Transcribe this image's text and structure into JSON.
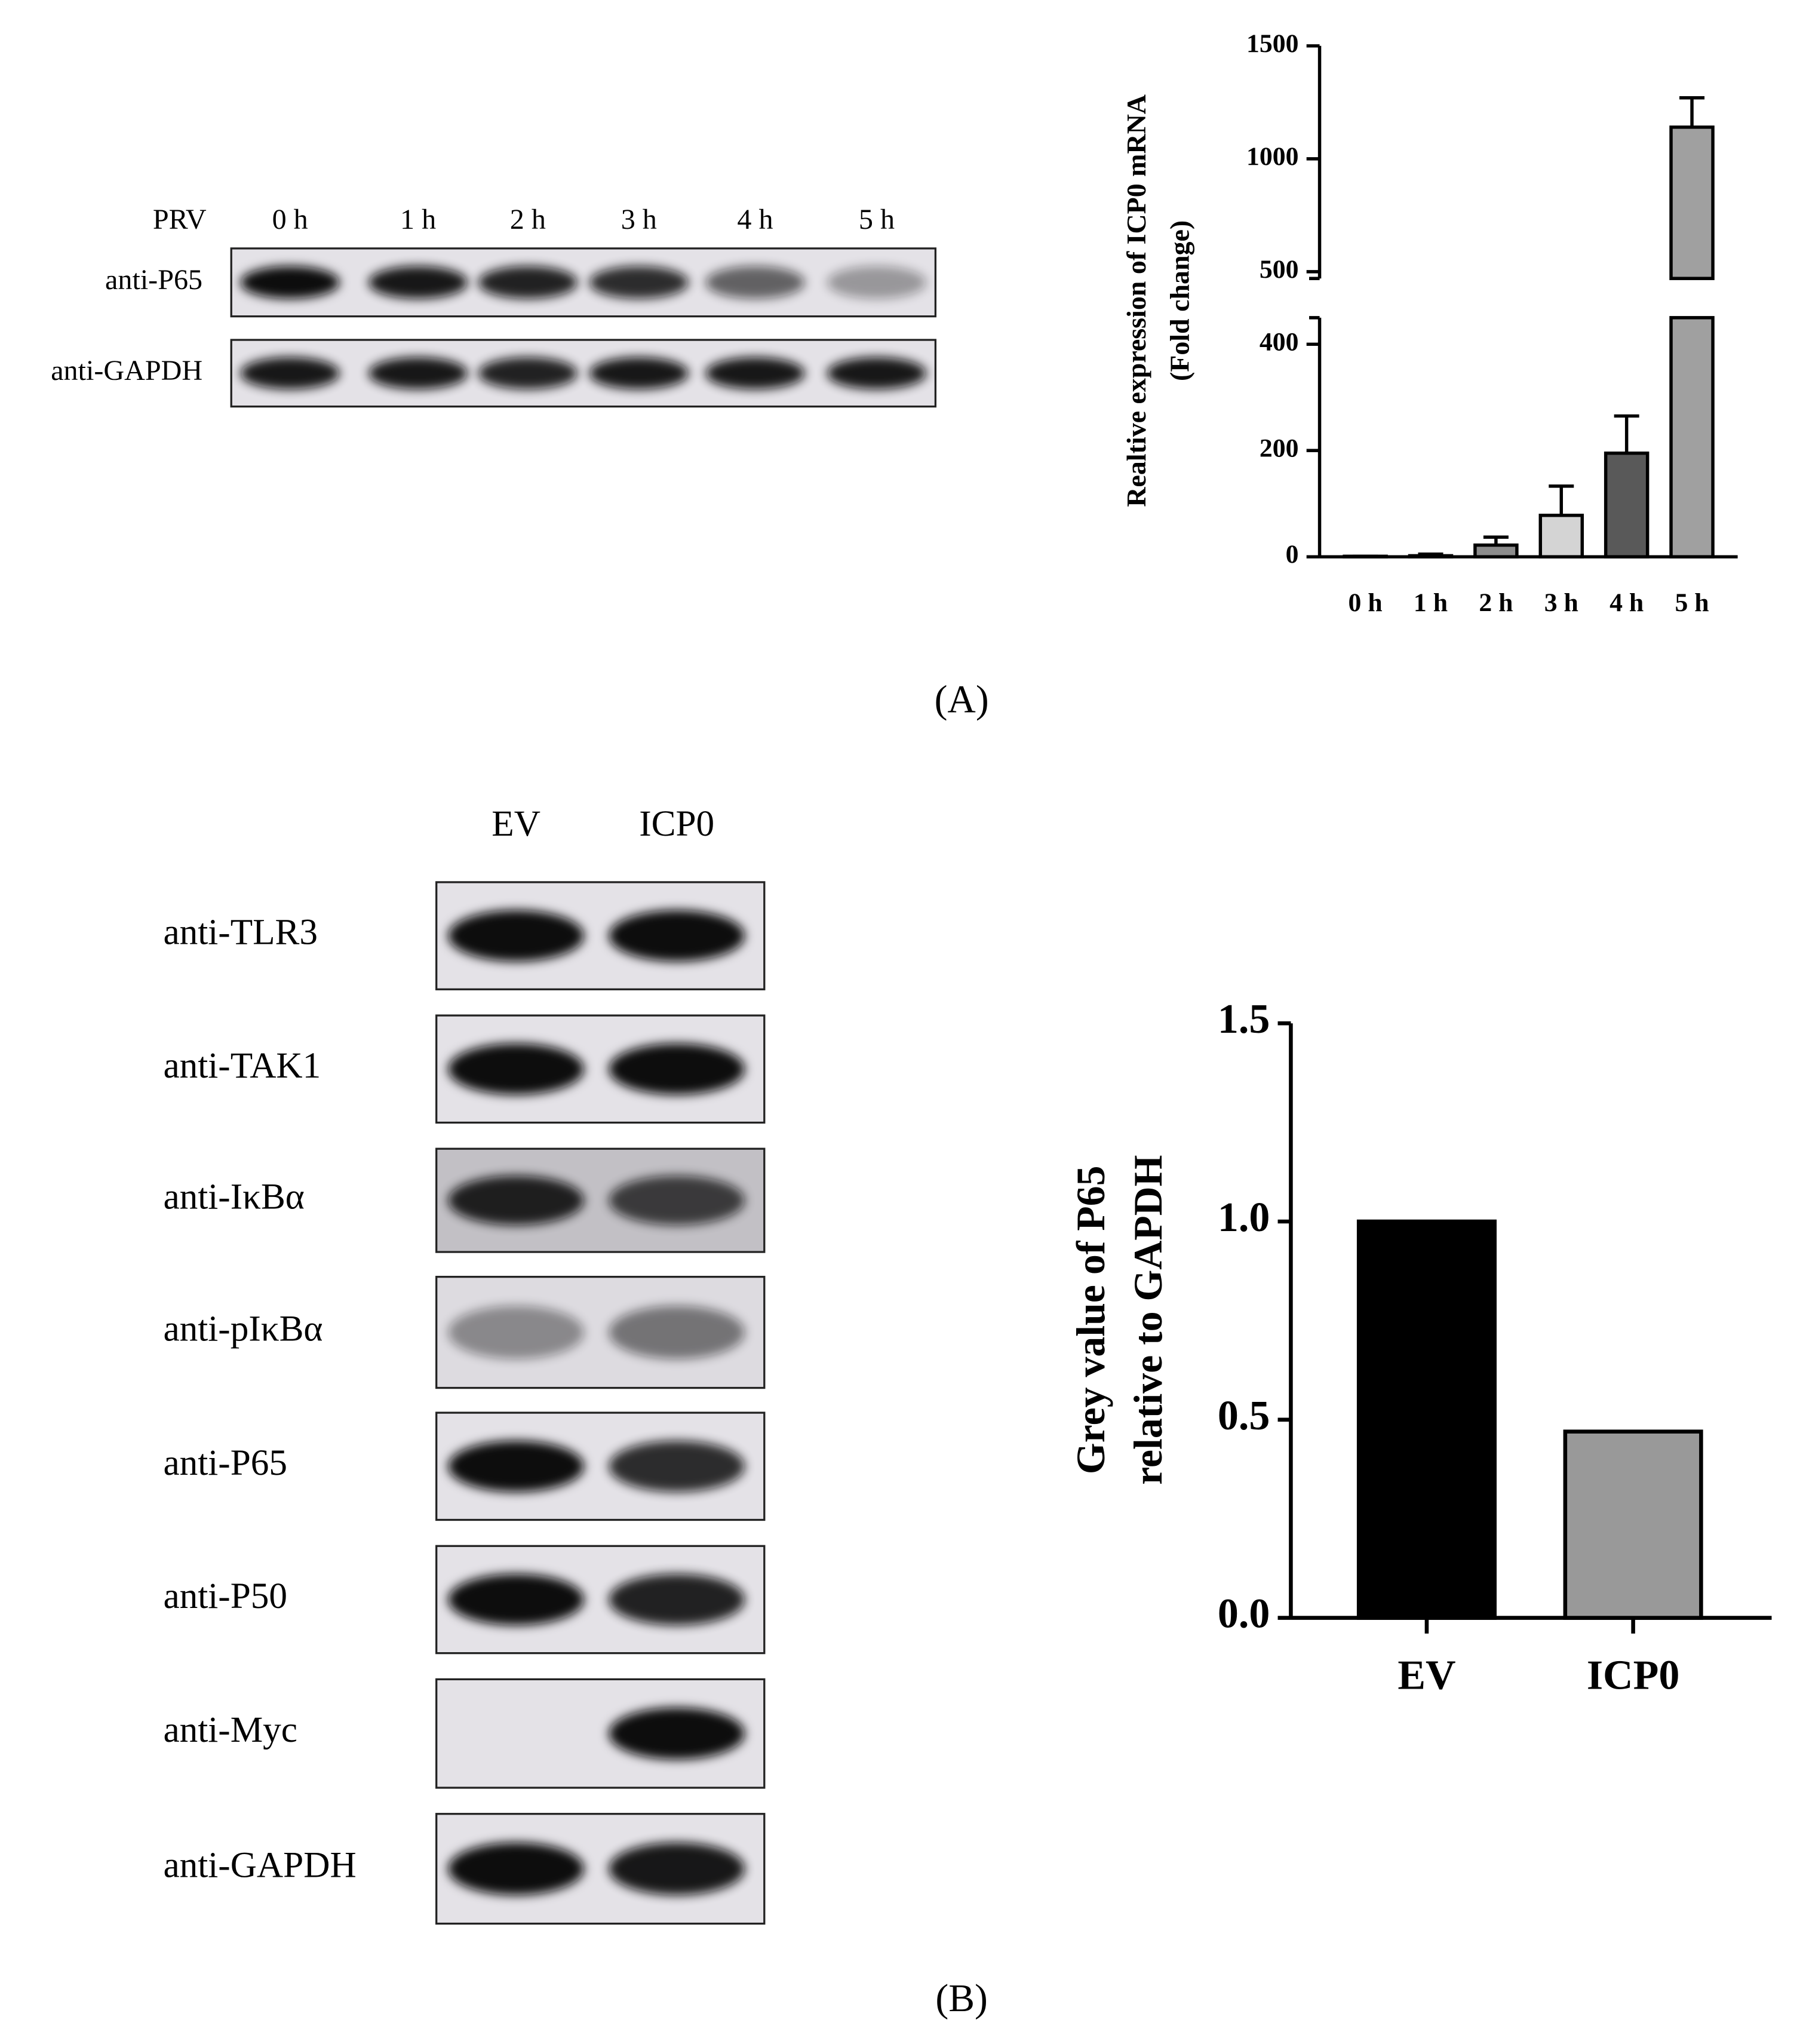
{
  "panels": {
    "a": "(A)",
    "b": "(B)"
  },
  "blot_a": {
    "header": "PRV",
    "lanes": [
      "0 h",
      "1 h",
      "2 h",
      "3 h",
      "4 h",
      "5 h"
    ],
    "rows": [
      "anti-P65",
      "anti-GAPDH"
    ]
  },
  "blot_b": {
    "lanes": [
      "EV",
      "ICP0"
    ],
    "rows": [
      "anti-TLR3",
      "anti-TAK1",
      "anti-IκBα",
      "anti-pIκBα",
      "anti-P65",
      "anti-P50",
      "anti-Myc",
      "anti-GAPDH"
    ]
  },
  "chart_data": [
    {
      "type": "bar",
      "ylabel": [
        "Realtive expression of ICP0 mRNA",
        "(Fold change)"
      ],
      "categories": [
        "0 h",
        "1 h",
        "2 h",
        "3 h",
        "4 h",
        "5 h"
      ],
      "values": [
        1,
        2,
        22,
        78,
        195,
        1140
      ],
      "errors": [
        0,
        3,
        15,
        55,
        70,
        130
      ],
      "colors": [
        "#ffffff",
        "#ffffff",
        "#8c8c8c",
        "#d4d4d4",
        "#595959",
        "#a0a0a0"
      ],
      "ylim": [
        0,
        1500
      ],
      "y_break": [
        450,
        470
      ],
      "yticks": [
        0,
        200,
        400,
        500,
        1000,
        1500
      ]
    },
    {
      "type": "bar",
      "ylabel": [
        "Grey value of P65",
        "relative to GAPDH"
      ],
      "categories": [
        "EV",
        "ICP0"
      ],
      "values": [
        1.0,
        0.47
      ],
      "colors": [
        "#000000",
        "#999999"
      ],
      "ylim": [
        0,
        1.5
      ],
      "yticks": [
        {
          "value": 0,
          "label": "0.0"
        },
        0.5,
        {
          "value": 1,
          "label": "1.0"
        },
        1.5
      ]
    }
  ]
}
